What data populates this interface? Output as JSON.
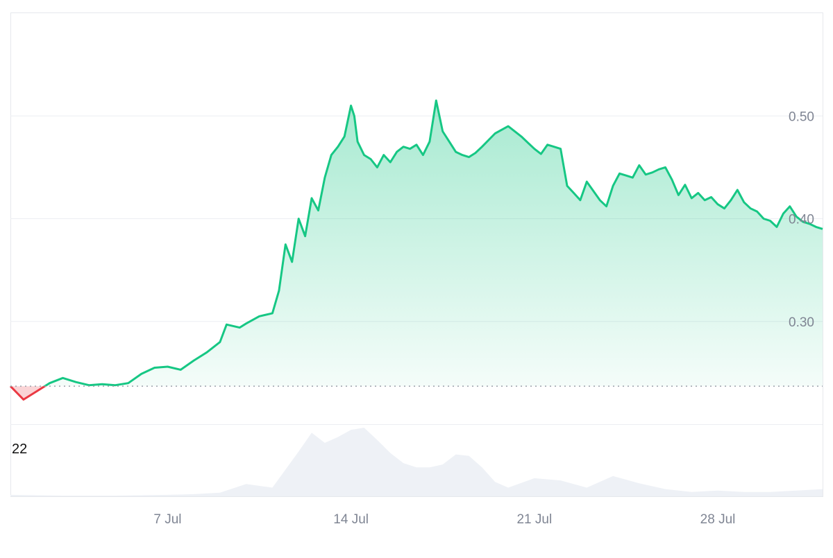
{
  "chart_data": {
    "type": "area",
    "title": "",
    "xlabel": "",
    "ylabel": "",
    "baseline": 0.237,
    "ylim": [
      0.2,
      0.6
    ],
    "y_ticks": [
      {
        "value": 0.3,
        "label": "0.30"
      },
      {
        "value": 0.4,
        "label": "0.40"
      },
      {
        "value": 0.5,
        "label": "0.50"
      }
    ],
    "x_range": [
      "2025-07-01",
      "2025-08-01"
    ],
    "x_ticks": [
      {
        "date": "2025-07-07",
        "label": "7 Jul"
      },
      {
        "date": "2025-07-14",
        "label": "14 Jul"
      },
      {
        "date": "2025-07-21",
        "label": "21 Jul"
      },
      {
        "date": "2025-07-28",
        "label": "28 Jul"
      }
    ],
    "grid": true,
    "colors": {
      "up": "#16c784",
      "down": "#ea3943",
      "volume": "#eef1f6",
      "grid": "#eceef2",
      "baseline_dots": "#9aa0aa"
    },
    "series": [
      {
        "x": [
          "2025-07-01",
          "2025-07-01T12:00",
          "2025-07-02",
          "2025-07-02T12:00",
          "2025-07-03",
          "2025-07-03T12:00",
          "2025-07-04",
          "2025-07-04T12:00",
          "2025-07-05",
          "2025-07-05T12:00",
          "2025-07-06",
          "2025-07-06T12:00",
          "2025-07-07",
          "2025-07-07T12:00",
          "2025-07-08",
          "2025-07-08T12:00",
          "2025-07-09",
          "2025-07-09T06:00",
          "2025-07-09T18:00",
          "2025-07-10",
          "2025-07-10T12:00",
          "2025-07-11",
          "2025-07-11T06:00",
          "2025-07-11T12:00",
          "2025-07-11T18:00",
          "2025-07-12",
          "2025-07-12T06:00",
          "2025-07-12T12:00",
          "2025-07-12T18:00",
          "2025-07-13",
          "2025-07-13T06:00",
          "2025-07-13T12:00",
          "2025-07-13T18:00",
          "2025-07-14",
          "2025-07-14T03:00",
          "2025-07-14T06:00",
          "2025-07-14T12:00",
          "2025-07-14T18:00",
          "2025-07-15",
          "2025-07-15T06:00",
          "2025-07-15T12:00",
          "2025-07-15T18:00",
          "2025-07-16",
          "2025-07-16T06:00",
          "2025-07-16T12:00",
          "2025-07-16T18:00",
          "2025-07-17",
          "2025-07-17T06:00",
          "2025-07-17T12:00",
          "2025-07-17T18:00",
          "2025-07-18",
          "2025-07-18T06:00",
          "2025-07-18T12:00",
          "2025-07-18T18:00",
          "2025-07-19",
          "2025-07-19T12:00",
          "2025-07-20",
          "2025-07-20T12:00",
          "2025-07-21",
          "2025-07-21T06:00",
          "2025-07-21T12:00",
          "2025-07-21T18:00",
          "2025-07-22",
          "2025-07-22T06:00",
          "2025-07-22T12:00",
          "2025-07-22T18:00",
          "2025-07-23",
          "2025-07-23T06:00",
          "2025-07-23T12:00",
          "2025-07-23T18:00",
          "2025-07-24",
          "2025-07-24T06:00",
          "2025-07-24T12:00",
          "2025-07-24T18:00",
          "2025-07-25",
          "2025-07-25T06:00",
          "2025-07-25T12:00",
          "2025-07-25T18:00",
          "2025-07-26",
          "2025-07-26T06:00",
          "2025-07-26T12:00",
          "2025-07-26T18:00",
          "2025-07-27",
          "2025-07-27T06:00",
          "2025-07-27T12:00",
          "2025-07-27T18:00",
          "2025-07-28",
          "2025-07-28T06:00",
          "2025-07-28T12:00",
          "2025-07-28T18:00",
          "2025-07-29",
          "2025-07-29T06:00",
          "2025-07-29T12:00",
          "2025-07-29T18:00",
          "2025-07-30",
          "2025-07-30T06:00",
          "2025-07-30T12:00",
          "2025-07-30T18:00",
          "2025-07-31",
          "2025-07-31T06:00",
          "2025-07-31T12:00",
          "2025-07-31T18:00",
          "2025-08-01"
        ],
        "values": [
          0.237,
          0.224,
          0.232,
          0.24,
          0.245,
          0.241,
          0.238,
          0.239,
          0.238,
          0.24,
          0.249,
          0.255,
          0.256,
          0.253,
          0.262,
          0.27,
          0.28,
          0.297,
          0.294,
          0.298,
          0.305,
          0.308,
          0.33,
          0.375,
          0.358,
          0.4,
          0.383,
          0.42,
          0.408,
          0.44,
          0.462,
          0.47,
          0.48,
          0.51,
          0.5,
          0.475,
          0.462,
          0.458,
          0.45,
          0.462,
          0.455,
          0.465,
          0.47,
          0.468,
          0.472,
          0.462,
          0.475,
          0.515,
          0.485,
          0.475,
          0.465,
          0.462,
          0.46,
          0.464,
          0.47,
          0.483,
          0.49,
          0.48,
          0.468,
          0.463,
          0.472,
          0.47,
          0.468,
          0.432,
          0.425,
          0.418,
          0.436,
          0.427,
          0.418,
          0.412,
          0.432,
          0.444,
          0.442,
          0.44,
          0.452,
          0.443,
          0.445,
          0.448,
          0.45,
          0.438,
          0.423,
          0.433,
          0.42,
          0.425,
          0.418,
          0.421,
          0.414,
          0.41,
          0.418,
          0.428,
          0.416,
          0.41,
          0.407,
          0.4,
          0.398,
          0.392,
          0.405,
          0.412,
          0.402,
          0.397,
          0.395,
          0.392,
          0.39
        ]
      }
    ],
    "volume": {
      "label": "22",
      "x": [
        "2025-07-01",
        "2025-07-03",
        "2025-07-05",
        "2025-07-07",
        "2025-07-08",
        "2025-07-09",
        "2025-07-10",
        "2025-07-11",
        "2025-07-12",
        "2025-07-12T12:00",
        "2025-07-13",
        "2025-07-13T12:00",
        "2025-07-14",
        "2025-07-14T12:00",
        "2025-07-15",
        "2025-07-15T12:00",
        "2025-07-16",
        "2025-07-16T12:00",
        "2025-07-17",
        "2025-07-17T12:00",
        "2025-07-18",
        "2025-07-18T12:00",
        "2025-07-19",
        "2025-07-19T12:00",
        "2025-07-20",
        "2025-07-21",
        "2025-07-22",
        "2025-07-23",
        "2025-07-24",
        "2025-07-25",
        "2025-07-26",
        "2025-07-27",
        "2025-07-28",
        "2025-07-29",
        "2025-07-30",
        "2025-07-31",
        "2025-08-01"
      ],
      "values": [
        2,
        1,
        1,
        2,
        3,
        5,
        17,
        12,
        62,
        88,
        74,
        82,
        92,
        95,
        78,
        60,
        46,
        40,
        40,
        44,
        58,
        56,
        40,
        20,
        12,
        25,
        22,
        12,
        28,
        18,
        10,
        6,
        8,
        6,
        6,
        8,
        10
      ]
    }
  }
}
